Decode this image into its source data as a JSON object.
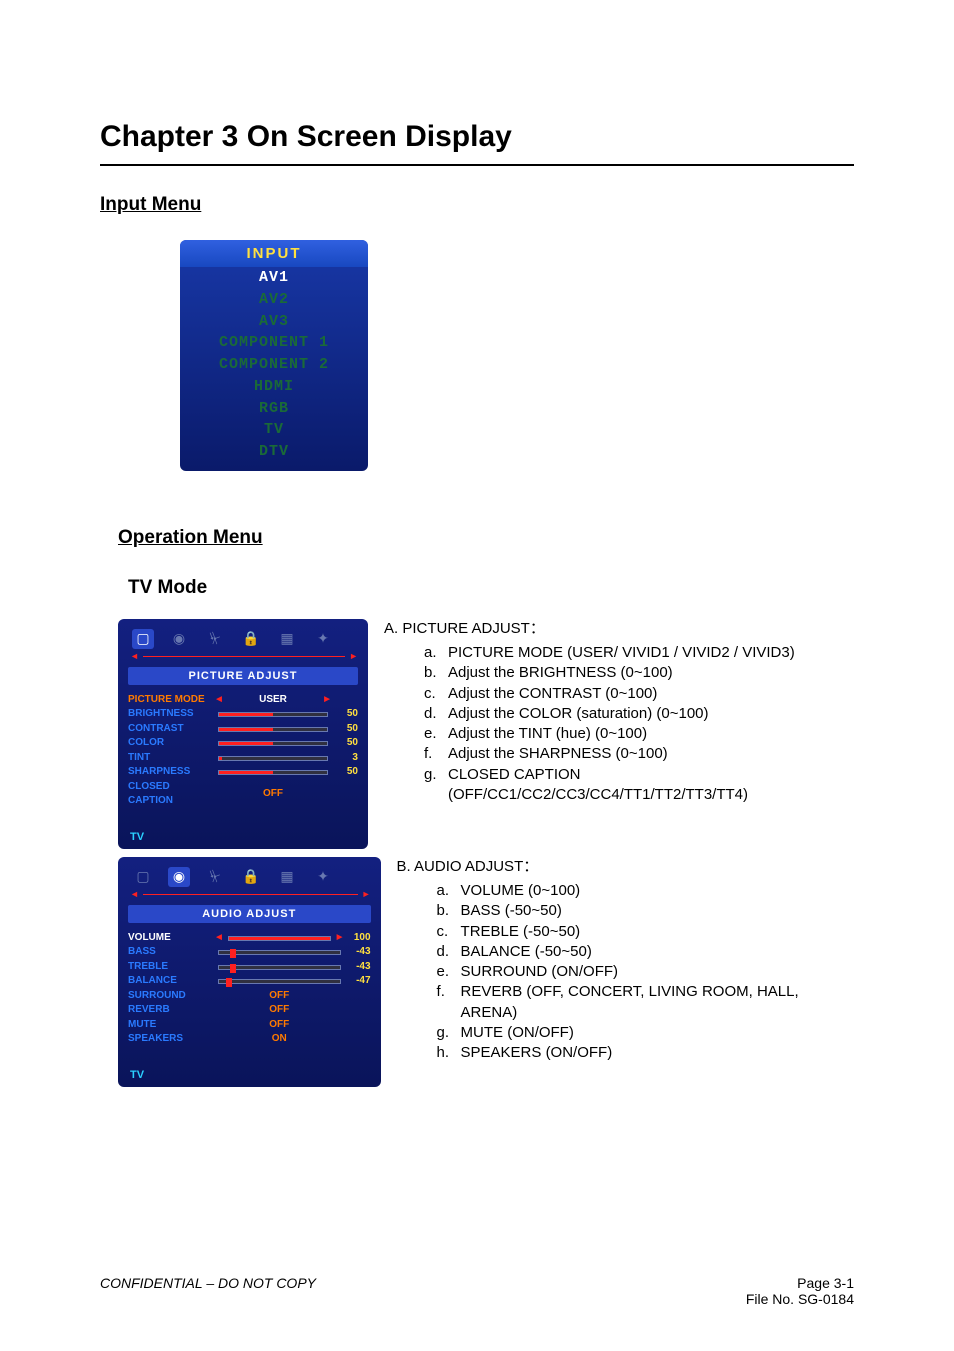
{
  "chapter_title": "Chapter 3    On Screen Display",
  "sections": {
    "input_menu_title": "Input Menu",
    "operation_menu_title": "Operation Menu",
    "tv_mode_title": "TV Mode"
  },
  "input_menu": {
    "header": "INPUT",
    "header_color": "#ffe040",
    "panel_gradient_top": "#1838a8",
    "panel_gradient_bottom": "#0a1a6a",
    "header_gradient_top": "#3060e0",
    "header_gradient_bottom": "#1848c0",
    "items": [
      {
        "label": "AV1",
        "color": "#ffffff"
      },
      {
        "label": "AV2",
        "color": "#1a6a38"
      },
      {
        "label": "AV3",
        "color": "#1a6a38"
      },
      {
        "label": "COMPONENT 1",
        "color": "#1a6a38"
      },
      {
        "label": "COMPONENT 2",
        "color": "#1a6a38"
      },
      {
        "label": "HDMI",
        "color": "#1a6a38"
      },
      {
        "label": "RGB",
        "color": "#1a6a38"
      },
      {
        "label": "TV",
        "color": "#1a6a38"
      },
      {
        "label": "DTV",
        "color": "#1a6a38"
      }
    ]
  },
  "osd_common": {
    "tab_icons": [
      "▢",
      "◉",
      "⏧",
      "🔒",
      "▦",
      "✦"
    ],
    "tab_color_inactive": "#6878b0",
    "tab_color_active_bg": "#2a48c8",
    "panel_bg_top": "#132080",
    "panel_bg_bottom": "#0a145a",
    "source_label": "TV",
    "source_color": "#2ad0ff",
    "label_color": "#2a7aff",
    "active_label_color": "#ff7a00",
    "value_color": "#ffe040",
    "slider_fill_color": "#ff2020"
  },
  "picture_panel": {
    "active_tab_index": 0,
    "subheader": "PICTURE  ADJUST",
    "rows": [
      {
        "type": "arrows",
        "label": "PICTURE MODE",
        "label_color": "#ff7a00",
        "center": "USER",
        "center_color": "#ffffff"
      },
      {
        "type": "slider",
        "label": "BRIGHTNESS",
        "fill_pct": 50,
        "value": "50"
      },
      {
        "type": "slider",
        "label": "CONTRAST",
        "fill_pct": 50,
        "value": "50"
      },
      {
        "type": "slider",
        "label": "COLOR",
        "fill_pct": 50,
        "value": "50"
      },
      {
        "type": "slider",
        "label": "TINT",
        "fill_pct": 3,
        "value": "3"
      },
      {
        "type": "slider",
        "label": "SHARPNESS",
        "fill_pct": 50,
        "value": "50"
      },
      {
        "type": "center",
        "label": "CLOSED CAPTION",
        "center": "OFF",
        "center_color": "#ff7a00"
      }
    ]
  },
  "audio_panel": {
    "active_tab_index": 1,
    "subheader": "AUDIO  ADJUST",
    "rows": [
      {
        "type": "sliderA",
        "label": "VOLUME",
        "label_color": "#ffffff",
        "fill_pct": 100,
        "value": "100"
      },
      {
        "type": "knob",
        "label": "BASS",
        "knob_pct": 12,
        "value": "-43"
      },
      {
        "type": "knob",
        "label": "TREBLE",
        "knob_pct": 12,
        "value": "-43"
      },
      {
        "type": "knob",
        "label": "BALANCE",
        "knob_pct": 8,
        "value": "-47"
      },
      {
        "type": "center",
        "label": "SURROUND",
        "center": "OFF",
        "center_color": "#ff7a00"
      },
      {
        "type": "center",
        "label": "REVERB",
        "center": "OFF",
        "center_color": "#ff7a00"
      },
      {
        "type": "center",
        "label": "MUTE",
        "center": "OFF",
        "center_color": "#ff7a00"
      },
      {
        "type": "center",
        "label": "SPEAKERS",
        "center": "ON",
        "center_color": "#ff7a00"
      }
    ]
  },
  "descriptions": {
    "picture": {
      "heading": "A. PICTURE ADJUST：",
      "items": [
        {
          "letter": "a.",
          "text": "PICTURE MODE (USER/ VIVID1 / VIVID2 / VIVID3)"
        },
        {
          "letter": "b.",
          "text": "Adjust the BRIGHTNESS (0~100)"
        },
        {
          "letter": "c.",
          "text": "Adjust the CONTRAST (0~100)"
        },
        {
          "letter": "d.",
          "text": "Adjust the COLOR (saturation) (0~100)"
        },
        {
          "letter": "e.",
          "text": "Adjust the TINT (hue) (0~100)"
        },
        {
          "letter": "f.",
          "text": "Adjust the SHARPNESS (0~100)"
        },
        {
          "letter": "g.",
          "text": "CLOSED CAPTION (OFF/CC1/CC2/CC3/CC4/TT1/TT2/TT3/TT4)"
        }
      ]
    },
    "audio": {
      "heading": "B. AUDIO ADJUST：",
      "items": [
        {
          "letter": "a.",
          "text": "VOLUME (0~100)"
        },
        {
          "letter": "b.",
          "text": "BASS (-50~50)"
        },
        {
          "letter": "c.",
          "text": "TREBLE (-50~50)"
        },
        {
          "letter": "d.",
          "text": "BALANCE (-50~50)"
        },
        {
          "letter": "e.",
          "text": "SURROUND (ON/OFF)"
        },
        {
          "letter": "f.",
          "text": "REVERB (OFF, CONCERT, LIVING ROOM, HALL, ARENA)"
        },
        {
          "letter": "g.",
          "text": "MUTE (ON/OFF)"
        },
        {
          "letter": "h.",
          "text": "SPEAKERS (ON/OFF)"
        }
      ]
    }
  },
  "footer": {
    "left": "CONFIDENTIAL – DO NOT COPY",
    "page": "Page  3-1",
    "file": "File  No.  SG-0184"
  }
}
